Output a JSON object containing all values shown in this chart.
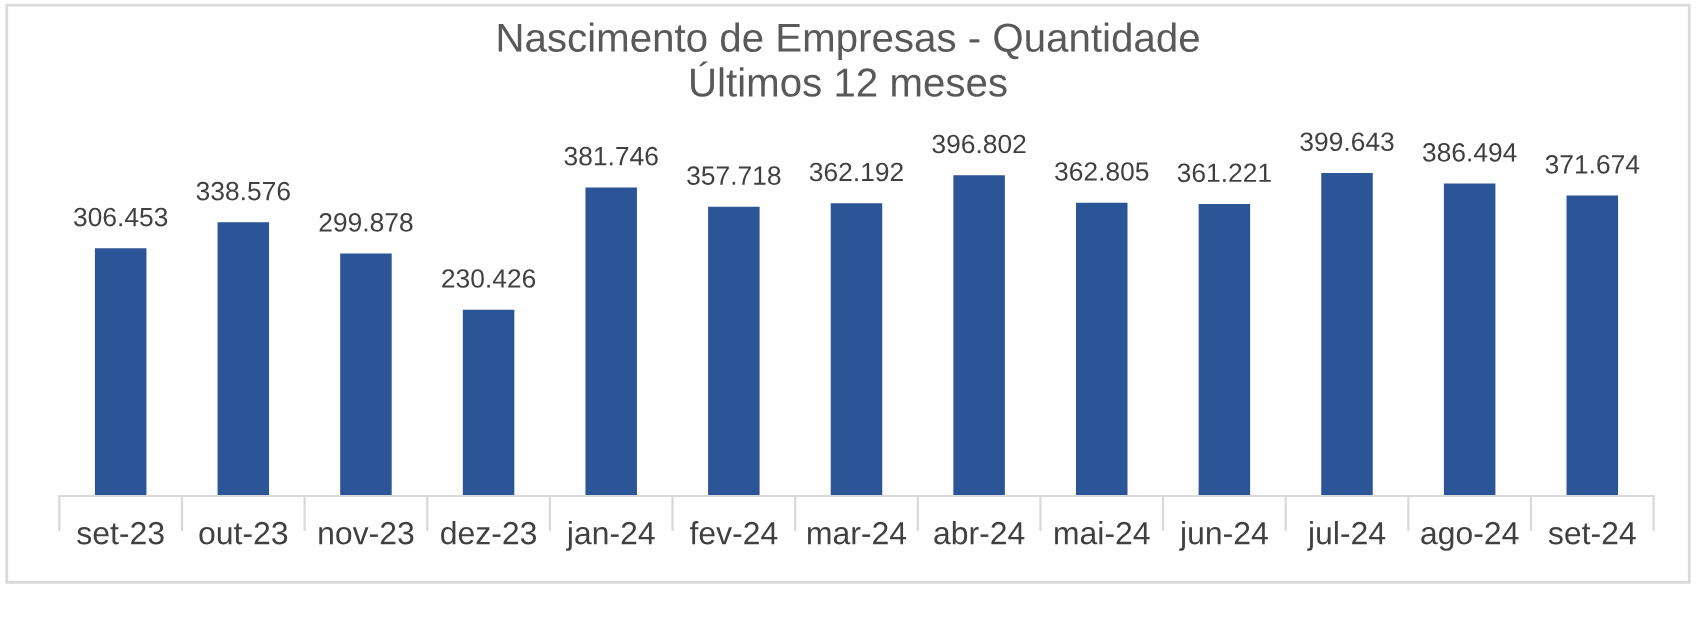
{
  "chart_data": {
    "type": "bar",
    "title": "Nascimento de Empresas - Quantidade\nÚltimos 12 meses",
    "categories": [
      "set-23",
      "out-23",
      "nov-23",
      "dez-23",
      "jan-24",
      "fev-24",
      "mar-24",
      "abr-24",
      "mai-24",
      "jun-24",
      "jul-24",
      "ago-24",
      "set-24"
    ],
    "values": [
      306453,
      338576,
      299878,
      230426,
      381746,
      357718,
      362192,
      396802,
      362805,
      361221,
      399643,
      386494,
      371674
    ],
    "value_labels": [
      "306.453",
      "338.576",
      "299.878",
      "230.426",
      "381.746",
      "357.718",
      "362.192",
      "396.802",
      "362.805",
      "361.221",
      "399.643",
      "386.494",
      "371.674"
    ],
    "color": "#2b5597"
  }
}
